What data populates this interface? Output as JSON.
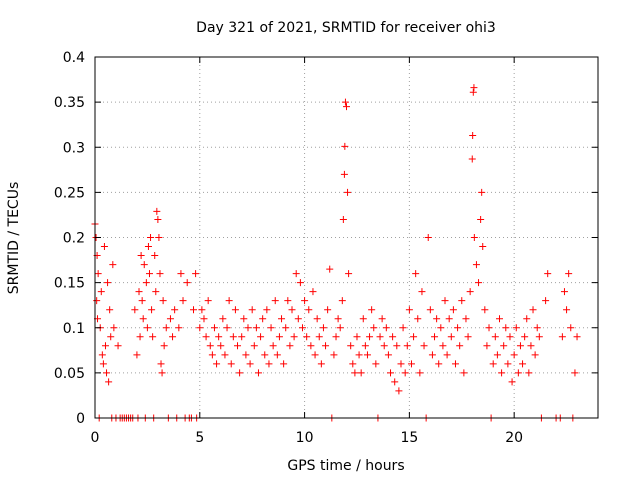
{
  "chart_data": {
    "type": "scatter",
    "title": "Day 321 of 2021, SRMTID for receiver ohi3",
    "xlabel": "GPS time / hours",
    "ylabel": "SRMTID / TECUs",
    "xlim": [
      0,
      24
    ],
    "ylim": [
      0,
      0.4
    ],
    "xticks": [
      0,
      5,
      10,
      15,
      20
    ],
    "xtick_labels": [
      "0",
      "5",
      "10",
      "15",
      "20"
    ],
    "yticks": [
      0,
      0.05,
      0.1,
      0.15,
      0.2,
      0.25,
      0.3,
      0.35,
      0.4
    ],
    "ytick_labels": [
      "0",
      "0.05",
      "0.1",
      "0.15",
      "0.2",
      "0.25",
      "0.3",
      "0.35",
      "0.4"
    ],
    "grid": true,
    "marker": "+",
    "color": "#ff0000",
    "series": [
      {
        "name": "ohi3",
        "points": [
          [
            0.0,
            0.215
          ],
          [
            0.05,
            0.2
          ],
          [
            0.08,
            0.13
          ],
          [
            0.1,
            0.18
          ],
          [
            0.12,
            0.11
          ],
          [
            0.15,
            0.16
          ],
          [
            0.2,
            0.0
          ],
          [
            0.25,
            0.1
          ],
          [
            0.3,
            0.14
          ],
          [
            0.35,
            0.07
          ],
          [
            0.4,
            0.06
          ],
          [
            0.45,
            0.19
          ],
          [
            0.5,
            0.08
          ],
          [
            0.55,
            0.05
          ],
          [
            0.6,
            0.15
          ],
          [
            0.65,
            0.04
          ],
          [
            0.7,
            0.12
          ],
          [
            0.75,
            0.09
          ],
          [
            0.8,
            0.0
          ],
          [
            0.85,
            0.17
          ],
          [
            0.9,
            0.1
          ],
          [
            1.0,
            0.0
          ],
          [
            1.1,
            0.08
          ],
          [
            1.2,
            0.0
          ],
          [
            1.3,
            0.0
          ],
          [
            1.4,
            0.0
          ],
          [
            1.5,
            0.0
          ],
          [
            1.6,
            0.0
          ],
          [
            1.7,
            0.0
          ],
          [
            1.8,
            0.0
          ],
          [
            1.9,
            0.12
          ],
          [
            2.0,
            0.07
          ],
          [
            2.05,
            0.0
          ],
          [
            2.1,
            0.14
          ],
          [
            2.15,
            0.09
          ],
          [
            2.2,
            0.18
          ],
          [
            2.25,
            0.13
          ],
          [
            2.3,
            0.11
          ],
          [
            2.35,
            0.17
          ],
          [
            2.4,
            0.0
          ],
          [
            2.45,
            0.15
          ],
          [
            2.5,
            0.1
          ],
          [
            2.55,
            0.19
          ],
          [
            2.6,
            0.16
          ],
          [
            2.65,
            0.2
          ],
          [
            2.7,
            0.12
          ],
          [
            2.75,
            0.09
          ],
          [
            2.8,
            0.0
          ],
          [
            2.85,
            0.18
          ],
          [
            2.9,
            0.14
          ],
          [
            2.95,
            0.229
          ],
          [
            3.0,
            0.22
          ],
          [
            3.05,
            0.2
          ],
          [
            3.1,
            0.16
          ],
          [
            3.15,
            0.06
          ],
          [
            3.2,
            0.05
          ],
          [
            3.25,
            0.13
          ],
          [
            3.3,
            0.08
          ],
          [
            3.4,
            0.1
          ],
          [
            3.5,
            0.0
          ],
          [
            3.6,
            0.11
          ],
          [
            3.7,
            0.09
          ],
          [
            3.8,
            0.12
          ],
          [
            3.9,
            0.0
          ],
          [
            4.0,
            0.1
          ],
          [
            4.1,
            0.16
          ],
          [
            4.2,
            0.13
          ],
          [
            4.3,
            0.0
          ],
          [
            4.4,
            0.15
          ],
          [
            4.5,
            0.0
          ],
          [
            4.6,
            0.0
          ],
          [
            4.7,
            0.12
          ],
          [
            4.8,
            0.16
          ],
          [
            4.85,
            0.0
          ],
          [
            5.0,
            0.1
          ],
          [
            5.1,
            0.12
          ],
          [
            5.2,
            0.11
          ],
          [
            5.3,
            0.09
          ],
          [
            5.4,
            0.13
          ],
          [
            5.5,
            0.08
          ],
          [
            5.6,
            0.07
          ],
          [
            5.7,
            0.1
          ],
          [
            5.8,
            0.06
          ],
          [
            5.9,
            0.09
          ],
          [
            6.0,
            0.08
          ],
          [
            6.1,
            0.11
          ],
          [
            6.2,
            0.07
          ],
          [
            6.3,
            0.1
          ],
          [
            6.4,
            0.13
          ],
          [
            6.5,
            0.06
          ],
          [
            6.6,
            0.09
          ],
          [
            6.7,
            0.12
          ],
          [
            6.8,
            0.08
          ],
          [
            6.9,
            0.05
          ],
          [
            7.0,
            0.09
          ],
          [
            7.1,
            0.11
          ],
          [
            7.2,
            0.07
          ],
          [
            7.3,
            0.1
          ],
          [
            7.4,
            0.06
          ],
          [
            7.5,
            0.12
          ],
          [
            7.6,
            0.08
          ],
          [
            7.7,
            0.1
          ],
          [
            7.8,
            0.05
          ],
          [
            7.9,
            0.09
          ],
          [
            8.0,
            0.11
          ],
          [
            8.1,
            0.07
          ],
          [
            8.2,
            0.12
          ],
          [
            8.3,
            0.06
          ],
          [
            8.4,
            0.1
          ],
          [
            8.5,
            0.08
          ],
          [
            8.6,
            0.13
          ],
          [
            8.7,
            0.07
          ],
          [
            8.8,
            0.09
          ],
          [
            8.9,
            0.11
          ],
          [
            9.0,
            0.06
          ],
          [
            9.1,
            0.1
          ],
          [
            9.2,
            0.13
          ],
          [
            9.3,
            0.08
          ],
          [
            9.4,
            0.12
          ],
          [
            9.5,
            0.09
          ],
          [
            9.6,
            0.16
          ],
          [
            9.7,
            0.11
          ],
          [
            9.8,
            0.15
          ],
          [
            9.9,
            0.1
          ],
          [
            10.0,
            0.13
          ],
          [
            10.1,
            0.09
          ],
          [
            10.2,
            0.12
          ],
          [
            10.3,
            0.08
          ],
          [
            10.4,
            0.14
          ],
          [
            10.5,
            0.07
          ],
          [
            10.6,
            0.11
          ],
          [
            10.7,
            0.09
          ],
          [
            10.8,
            0.06
          ],
          [
            10.9,
            0.1
          ],
          [
            11.0,
            0.08
          ],
          [
            11.1,
            0.12
          ],
          [
            11.2,
            0.165
          ],
          [
            11.3,
            0.0
          ],
          [
            11.4,
            0.07
          ],
          [
            11.5,
            0.09
          ],
          [
            11.6,
            0.11
          ],
          [
            11.7,
            0.1
          ],
          [
            11.8,
            0.13
          ],
          [
            11.85,
            0.22
          ],
          [
            11.9,
            0.27
          ],
          [
            11.92,
            0.301
          ],
          [
            11.95,
            0.35
          ],
          [
            12.0,
            0.345
          ],
          [
            12.05,
            0.25
          ],
          [
            12.1,
            0.16
          ],
          [
            12.2,
            0.08
          ],
          [
            12.3,
            0.06
          ],
          [
            12.4,
            0.05
          ],
          [
            12.5,
            0.09
          ],
          [
            12.6,
            0.07
          ],
          [
            12.7,
            0.05
          ],
          [
            12.8,
            0.11
          ],
          [
            12.9,
            0.08
          ],
          [
            13.0,
            0.07
          ],
          [
            13.1,
            0.09
          ],
          [
            13.2,
            0.12
          ],
          [
            13.3,
            0.1
          ],
          [
            13.4,
            0.06
          ],
          [
            13.5,
            0.0
          ],
          [
            13.6,
            0.09
          ],
          [
            13.7,
            0.11
          ],
          [
            13.8,
            0.08
          ],
          [
            13.9,
            0.1
          ],
          [
            14.0,
            0.07
          ],
          [
            14.1,
            0.05
          ],
          [
            14.2,
            0.09
          ],
          [
            14.3,
            0.04
          ],
          [
            14.4,
            0.08
          ],
          [
            14.5,
            0.03
          ],
          [
            14.6,
            0.06
          ],
          [
            14.7,
            0.1
          ],
          [
            14.8,
            0.05
          ],
          [
            14.9,
            0.08
          ],
          [
            15.0,
            0.12
          ],
          [
            15.1,
            0.06
          ],
          [
            15.2,
            0.09
          ],
          [
            15.3,
            0.16
          ],
          [
            15.4,
            0.11
          ],
          [
            15.5,
            0.05
          ],
          [
            15.6,
            0.14
          ],
          [
            15.7,
            0.08
          ],
          [
            15.8,
            0.0
          ],
          [
            15.9,
            0.2
          ],
          [
            16.0,
            0.12
          ],
          [
            16.1,
            0.07
          ],
          [
            16.2,
            0.09
          ],
          [
            16.3,
            0.11
          ],
          [
            16.4,
            0.06
          ],
          [
            16.5,
            0.1
          ],
          [
            16.6,
            0.08
          ],
          [
            16.7,
            0.13
          ],
          [
            16.8,
            0.07
          ],
          [
            16.9,
            0.11
          ],
          [
            17.0,
            0.09
          ],
          [
            17.1,
            0.12
          ],
          [
            17.2,
            0.06
          ],
          [
            17.3,
            0.1
          ],
          [
            17.4,
            0.08
          ],
          [
            17.5,
            0.13
          ],
          [
            17.6,
            0.05
          ],
          [
            17.7,
            0.11
          ],
          [
            17.8,
            0.09
          ],
          [
            17.9,
            0.14
          ],
          [
            18.0,
            0.287
          ],
          [
            18.02,
            0.313
          ],
          [
            18.05,
            0.361
          ],
          [
            18.08,
            0.366
          ],
          [
            18.1,
            0.2
          ],
          [
            18.2,
            0.17
          ],
          [
            18.3,
            0.15
          ],
          [
            18.4,
            0.22
          ],
          [
            18.45,
            0.25
          ],
          [
            18.5,
            0.19
          ],
          [
            18.6,
            0.12
          ],
          [
            18.7,
            0.08
          ],
          [
            18.8,
            0.1
          ],
          [
            18.9,
            0.0
          ],
          [
            19.0,
            0.06
          ],
          [
            19.1,
            0.09
          ],
          [
            19.2,
            0.07
          ],
          [
            19.3,
            0.11
          ],
          [
            19.4,
            0.05
          ],
          [
            19.5,
            0.08
          ],
          [
            19.6,
            0.1
          ],
          [
            19.7,
            0.06
          ],
          [
            19.8,
            0.09
          ],
          [
            19.9,
            0.04
          ],
          [
            20.0,
            0.07
          ],
          [
            20.1,
            0.1
          ],
          [
            20.2,
            0.05
          ],
          [
            20.3,
            0.08
          ],
          [
            20.4,
            0.06
          ],
          [
            20.5,
            0.09
          ],
          [
            20.6,
            0.11
          ],
          [
            20.7,
            0.05
          ],
          [
            20.8,
            0.08
          ],
          [
            20.9,
            0.12
          ],
          [
            21.0,
            0.07
          ],
          [
            21.1,
            0.1
          ],
          [
            21.2,
            0.09
          ],
          [
            21.3,
            0.0
          ],
          [
            21.5,
            0.13
          ],
          [
            21.6,
            0.16
          ],
          [
            22.0,
            0.0
          ],
          [
            22.2,
            0.0
          ],
          [
            22.3,
            0.09
          ],
          [
            22.4,
            0.14
          ],
          [
            22.5,
            0.12
          ],
          [
            22.6,
            0.16
          ],
          [
            22.7,
            0.1
          ],
          [
            22.8,
            0.0
          ],
          [
            22.9,
            0.05
          ],
          [
            23.0,
            0.09
          ]
        ]
      }
    ]
  }
}
